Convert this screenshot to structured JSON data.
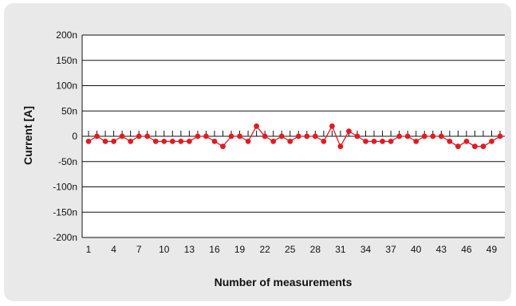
{
  "chart_data": {
    "type": "line",
    "ylabel": "Current [A]",
    "xlabel": "Number of measurements",
    "ylim": [
      -200,
      200
    ],
    "yticks": [
      {
        "value": 200,
        "label": "200n"
      },
      {
        "value": 150,
        "label": "150n"
      },
      {
        "value": 100,
        "label": "100n"
      },
      {
        "value": 50,
        "label": "50n"
      },
      {
        "value": 0,
        "label": "0"
      },
      {
        "value": -50,
        "label": "-50n"
      },
      {
        "value": -100,
        "label": "-100n"
      },
      {
        "value": -150,
        "label": "-150n"
      },
      {
        "value": -200,
        "label": "-200n"
      }
    ],
    "xticks": [
      1,
      4,
      7,
      10,
      13,
      16,
      19,
      22,
      25,
      28,
      31,
      34,
      37,
      40,
      43,
      46,
      49
    ],
    "xlim": [
      1,
      50
    ],
    "grid": true,
    "series": [
      {
        "color": "#e11b22",
        "x": [
          1,
          2,
          3,
          4,
          5,
          6,
          7,
          8,
          9,
          10,
          11,
          12,
          13,
          14,
          15,
          16,
          17,
          18,
          19,
          20,
          21,
          22,
          23,
          24,
          25,
          26,
          27,
          28,
          29,
          30,
          31,
          32,
          33,
          34,
          35,
          36,
          37,
          38,
          39,
          40,
          41,
          42,
          43,
          44,
          45,
          46,
          47,
          48,
          49,
          50
        ],
        "y": [
          -10,
          0,
          -10,
          -10,
          0,
          -10,
          0,
          0,
          -10,
          -10,
          -10,
          -10,
          -10,
          0,
          0,
          -10,
          -20,
          0,
          0,
          -10,
          20,
          0,
          -10,
          0,
          -10,
          0,
          0,
          0,
          -10,
          20,
          -20,
          10,
          0,
          -10,
          -10,
          -10,
          -10,
          0,
          0,
          -10,
          0,
          0,
          0,
          -10,
          -20,
          -10,
          -20,
          -20,
          -10,
          0
        ]
      }
    ]
  }
}
